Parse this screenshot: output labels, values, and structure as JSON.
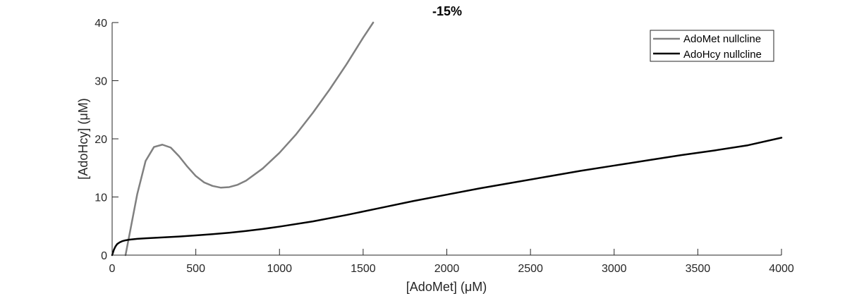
{
  "chart_data": {
    "type": "line",
    "title": "-15%",
    "xlabel": "[AdoMet] (μM)",
    "ylabel": "[AdoHcy] (μM)",
    "xlim": [
      0,
      4000
    ],
    "ylim": [
      0,
      40
    ],
    "xticks": [
      0,
      500,
      1000,
      1500,
      2000,
      2500,
      3000,
      3500,
      4000
    ],
    "yticks": [
      0,
      10,
      20,
      30,
      40
    ],
    "grid": false,
    "legend_position": "top-right",
    "series": [
      {
        "name": "AdoMet nullcline",
        "color": "#808080",
        "x": [
          80,
          100,
          150,
          200,
          250,
          300,
          350,
          400,
          450,
          500,
          550,
          600,
          650,
          700,
          750,
          800,
          900,
          1000,
          1100,
          1200,
          1300,
          1400,
          1500,
          1560
        ],
        "y": [
          0,
          3.0,
          10.5,
          16.2,
          18.6,
          19.0,
          18.5,
          17.0,
          15.2,
          13.6,
          12.5,
          11.9,
          11.6,
          11.7,
          12.1,
          12.8,
          14.9,
          17.6,
          20.8,
          24.5,
          28.5,
          32.8,
          37.4,
          40.0
        ]
      },
      {
        "name": "AdoHcy nullcline",
        "color": "#000000",
        "x": [
          0,
          10,
          20,
          30,
          45,
          60,
          80,
          100,
          150,
          200,
          300,
          400,
          500,
          600,
          700,
          800,
          900,
          1000,
          1200,
          1400,
          1600,
          1800,
          2000,
          2200,
          2400,
          2600,
          2800,
          3000,
          3200,
          3400,
          3600,
          3800,
          4000
        ],
        "y": [
          0,
          0.9,
          1.5,
          1.9,
          2.2,
          2.4,
          2.55,
          2.65,
          2.8,
          2.9,
          3.05,
          3.2,
          3.4,
          3.6,
          3.85,
          4.15,
          4.5,
          4.9,
          5.8,
          6.9,
          8.1,
          9.3,
          10.4,
          11.5,
          12.5,
          13.5,
          14.5,
          15.4,
          16.3,
          17.2,
          18.0,
          18.9,
          20.2
        ]
      }
    ]
  }
}
